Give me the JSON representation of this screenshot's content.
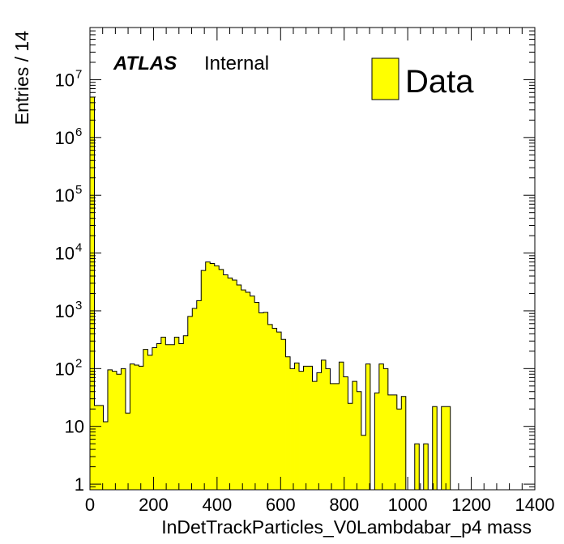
{
  "chart_data": {
    "type": "bar",
    "title": "",
    "xlabel": "InDetTrackParticles_V0Lambdabar_p4 mass",
    "ylabel": "Entries / 14",
    "bin_width": 14,
    "xlim": [
      0,
      1400
    ],
    "ylim": [
      0.8,
      80000000
    ],
    "yscale": "log",
    "x_ticks": [
      "0",
      "200",
      "400",
      "600",
      "800",
      "1000",
      "1200",
      "1400"
    ],
    "y_ticks": [
      {
        "value": 1,
        "base": "1",
        "exp": ""
      },
      {
        "value": 10,
        "base": "10",
        "exp": ""
      },
      {
        "value": 100,
        "base": "10",
        "exp": "2"
      },
      {
        "value": 1000,
        "base": "10",
        "exp": "3"
      },
      {
        "value": 10000,
        "base": "10",
        "exp": "4"
      },
      {
        "value": 100000,
        "base": "10",
        "exp": "5"
      },
      {
        "value": 1000000,
        "base": "10",
        "exp": "6"
      },
      {
        "value": 10000000,
        "base": "10",
        "exp": "7"
      }
    ],
    "fill_color": "#ffff00",
    "line_color": "#000000",
    "label_main": "ATLAS",
    "label_sub": "Internal",
    "legend": {
      "entry": "Data",
      "position": "top-right"
    },
    "values": [
      5000000,
      23,
      23,
      12,
      95,
      90,
      80,
      100,
      17,
      120,
      115,
      110,
      215,
      170,
      230,
      270,
      350,
      260,
      260,
      350,
      270,
      370,
      800,
      1100,
      1500,
      5000,
      7000,
      6600,
      6000,
      5200,
      4200,
      3700,
      3400,
      2800,
      2300,
      2100,
      1800,
      1400,
      920,
      940,
      580,
      500,
      430,
      320,
      160,
      100,
      125,
      90,
      110,
      110,
      60,
      85,
      140,
      100,
      55,
      55,
      130,
      72,
      25,
      60,
      40,
      7,
      120,
      0,
      38,
      120,
      100,
      35,
      35,
      20,
      33,
      0,
      0,
      5,
      0,
      5,
      0,
      22,
      0,
      22,
      22
    ]
  }
}
